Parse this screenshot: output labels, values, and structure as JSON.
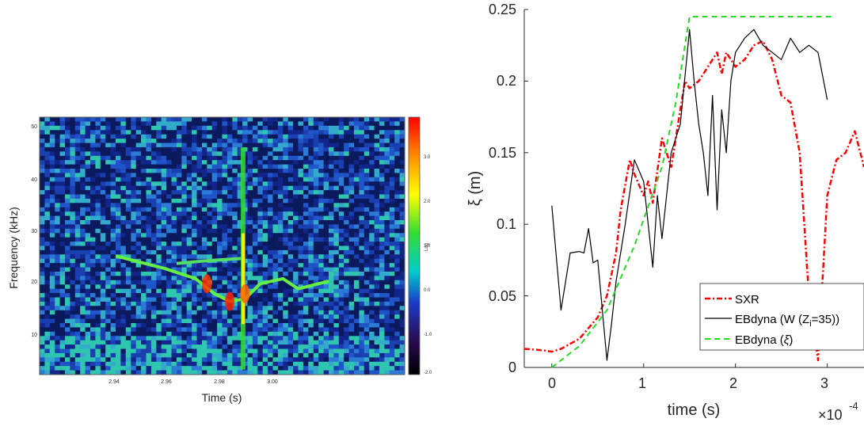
{
  "spectrogram": {
    "type": "heatmap",
    "xlabel": "Time (s)",
    "ylabel": "Frequency (kHz)",
    "x_ticks": [
      "2.94",
      "2.96",
      "2.98",
      "3.00"
    ],
    "y_ticks": [
      "10",
      "20",
      "30",
      "40",
      "50"
    ],
    "colorbar_label": "Log",
    "colorbar_ticks": [
      "3.0",
      "2.0",
      "1.0",
      "0.0",
      "-1.0",
      "-2.0"
    ],
    "colorbar_colors": [
      "#ff0000",
      "#ff8c00",
      "#ffff00",
      "#33dd33",
      "#00cccc",
      "#1a3cc8",
      "#2a0a50",
      "#000000"
    ],
    "background_color": "#1a3fb0",
    "xlim": [
      2.922,
      3.018
    ],
    "ylim": [
      2,
      53
    ],
    "mode_lines": [
      {
        "name": "mode1",
        "points": [
          [
            2.942,
            25.5
          ],
          [
            2.955,
            23
          ],
          [
            2.963,
            21
          ],
          [
            2.968,
            18
          ],
          [
            2.972,
            16.5
          ],
          [
            2.976,
            17
          ]
        ]
      },
      {
        "name": "mode2",
        "points": [
          [
            2.976,
            17
          ],
          [
            2.98,
            20
          ],
          [
            2.986,
            21
          ],
          [
            2.99,
            19
          ],
          [
            2.998,
            20.5
          ]
        ]
      },
      {
        "name": "mode3",
        "points": [
          [
            2.958,
            24
          ],
          [
            2.965,
            24.5
          ],
          [
            2.975,
            25
          ]
        ]
      }
    ]
  },
  "chart_data": {
    "type": "line",
    "xlabel": "time (s)",
    "ylabel": "ξ (m)",
    "x_multiplier": "×10",
    "x_exponent": "-4",
    "xlim": [
      -0.3,
      3.4
    ],
    "ylim": [
      0,
      0.25
    ],
    "x_ticks": [
      "0",
      "1",
      "2",
      "3"
    ],
    "y_ticks": [
      "0",
      "0.05",
      "0.1",
      "0.15",
      "0.2",
      "0.25"
    ],
    "legend": {
      "position": "bottom-right",
      "entries": [
        {
          "label": "SXR",
          "color": "#ff0000",
          "style": "dash-dot"
        },
        {
          "label": "EBdyna (W (Z",
          "sub": "i",
          "label_end": "=35))",
          "color": "#000000",
          "style": "solid"
        },
        {
          "label": "EBdyna (",
          "italic": "ξ",
          "label_end": ")",
          "color": "#22dd22",
          "style": "dashed"
        }
      ]
    },
    "series": [
      {
        "name": "SXR",
        "color": "#ff0000",
        "x": [
          -0.3,
          -0.1,
          0,
          0.1,
          0.3,
          0.5,
          0.6,
          0.7,
          0.75,
          0.85,
          0.9,
          1.0,
          1.05,
          1.1,
          1.2,
          1.3,
          1.4,
          1.45,
          1.5,
          1.6,
          1.7,
          1.8,
          1.85,
          1.9,
          2.0,
          2.1,
          2.2,
          2.3,
          2.4,
          2.5,
          2.6,
          2.7,
          2.75,
          2.8,
          2.9,
          3.0,
          3.1,
          3.2,
          3.3,
          3.4
        ],
        "y": [
          0.013,
          0.012,
          0.011,
          0.013,
          0.02,
          0.035,
          0.05,
          0.08,
          0.11,
          0.145,
          0.135,
          0.12,
          0.13,
          0.115,
          0.16,
          0.14,
          0.18,
          0.2,
          0.195,
          0.2,
          0.21,
          0.22,
          0.205,
          0.22,
          0.21,
          0.215,
          0.225,
          0.228,
          0.215,
          0.19,
          0.185,
          0.15,
          0.1,
          0.05,
          0.005,
          0.12,
          0.145,
          0.15,
          0.165,
          0.14
        ]
      },
      {
        "name": "EBdyna (W (Zi=35))",
        "color": "#000000",
        "x": [
          0,
          0.1,
          0.2,
          0.3,
          0.35,
          0.4,
          0.45,
          0.5,
          0.55,
          0.6,
          0.65,
          0.7,
          0.8,
          0.9,
          1.0,
          1.1,
          1.15,
          1.2,
          1.3,
          1.4,
          1.5,
          1.55,
          1.6,
          1.65,
          1.7,
          1.75,
          1.8,
          1.85,
          1.9,
          1.95,
          2.0,
          2.1,
          2.2,
          2.3,
          2.4,
          2.5,
          2.6,
          2.7,
          2.8,
          2.9,
          3.0
        ],
        "y": [
          0.113,
          0.04,
          0.08,
          0.081,
          0.08,
          0.097,
          0.073,
          0.075,
          0.04,
          0.005,
          0.03,
          0.06,
          0.1,
          0.145,
          0.13,
          0.07,
          0.12,
          0.09,
          0.15,
          0.17,
          0.236,
          0.2,
          0.17,
          0.15,
          0.12,
          0.19,
          0.11,
          0.18,
          0.15,
          0.2,
          0.22,
          0.23,
          0.236,
          0.225,
          0.22,
          0.215,
          0.23,
          0.22,
          0.225,
          0.22,
          0.187
        ]
      },
      {
        "name": "EBdyna (ξ)",
        "color": "#22dd22",
        "x": [
          0,
          0.3,
          0.6,
          0.9,
          1.2,
          1.35,
          1.5,
          1.55,
          1.7,
          2.0,
          2.5,
          3.0,
          3.06
        ],
        "y": [
          0,
          0.015,
          0.04,
          0.085,
          0.14,
          0.185,
          0.245,
          0.245,
          0.245,
          0.245,
          0.245,
          0.245,
          0.245
        ]
      }
    ]
  }
}
